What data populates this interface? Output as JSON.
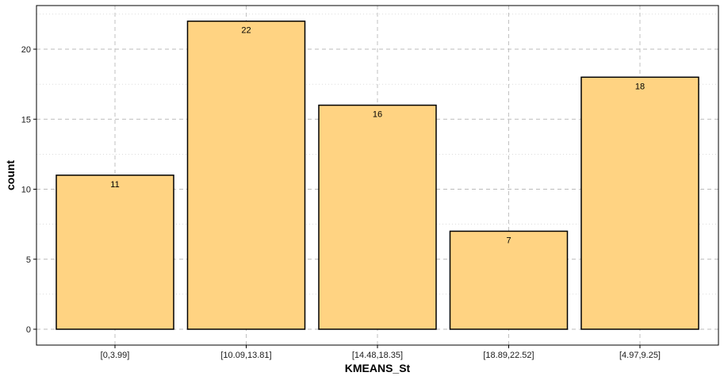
{
  "chart_data": {
    "type": "bar",
    "categories": [
      "[0,3.99]",
      "[10.09,13.81]",
      "[14.48,18.35]",
      "[18.89,22.52]",
      "[4.97,9.25]"
    ],
    "values": [
      11,
      22,
      16,
      7,
      18
    ],
    "data_labels": [
      "11",
      "22",
      "16",
      "7",
      "18"
    ],
    "xlabel": "KMEANS_St",
    "ylabel": "count",
    "ylim": [
      0,
      23.1
    ],
    "yticks": [
      0,
      5,
      10,
      15,
      20
    ],
    "grid": true,
    "colors": {
      "bar_fill": "#FFD382",
      "bar_stroke": "#000000",
      "grid": "#bbbbbb"
    }
  }
}
